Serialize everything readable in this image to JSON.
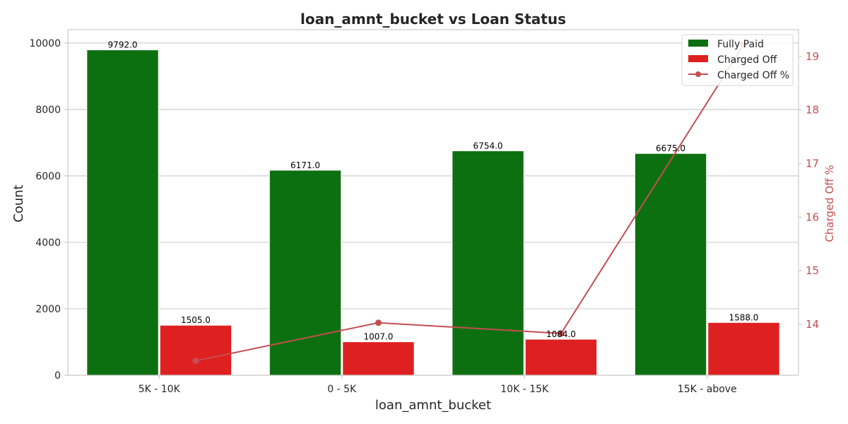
{
  "chart_data": {
    "type": "bar",
    "title": "loan_amnt_bucket vs Loan Status",
    "xlabel": "loan_amnt_bucket",
    "ylabel": "Count",
    "ylabel_right": "Charged Off %",
    "categories": [
      "5K - 10K",
      "0 - 5K",
      "10K - 15K",
      "15K - above"
    ],
    "series": [
      {
        "name": "Fully Paid",
        "type": "bar",
        "color": "#0d7010",
        "values": [
          9792.0,
          6171.0,
          6754.0,
          6675.0
        ],
        "labels": [
          "9792.0",
          "6171.0",
          "6754.0",
          "6675.0"
        ]
      },
      {
        "name": "Charged Off",
        "type": "bar",
        "color": "#df2020",
        "values": [
          1505.0,
          1007.0,
          1084.0,
          1588.0
        ],
        "labels": [
          "1505.0",
          "1007.0",
          "1084.0",
          "1588.0"
        ]
      },
      {
        "name": "Charged Off %",
        "type": "line",
        "axis": "right",
        "color": "#c44e52",
        "values": [
          13.32,
          14.03,
          13.83,
          19.22
        ]
      }
    ],
    "ylim": [
      0,
      10400
    ],
    "yticks": [
      "0",
      "2000",
      "4000",
      "6000",
      "8000",
      "10000"
    ],
    "ylim_right": [
      13.05,
      19.5
    ],
    "yticks_right": [
      "14",
      "15",
      "16",
      "17",
      "18",
      "19"
    ],
    "grid": true,
    "legend_position": "top-right"
  }
}
